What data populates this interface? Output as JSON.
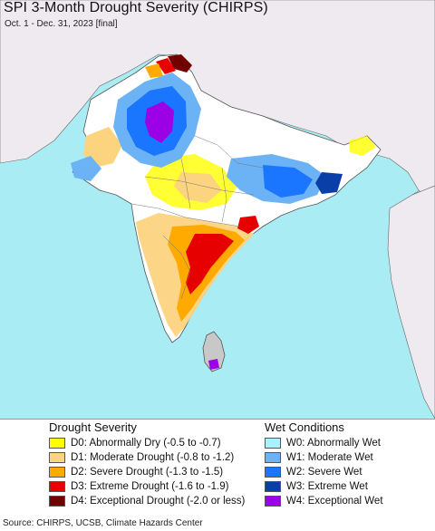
{
  "title": "SPI 3-Month Drought Severity (CHIRPS)",
  "subtitle": "Oct. 1 - Dec. 31, 2023 [final]",
  "colors": {
    "ocean": "#a9ecf4",
    "land": "#ffffff",
    "outside_land": "#eeeaf0",
    "border": "#555555"
  },
  "legend_drought": {
    "heading": "Drought Severity",
    "items": [
      {
        "label": "D0: Abnormally Dry (-0.5 to -0.7)",
        "color": "#ffff00"
      },
      {
        "label": "D1: Moderate Drought (-0.8 to -1.2)",
        "color": "#fcd37f"
      },
      {
        "label": "D2: Severe Drought (-1.3 to -1.5)",
        "color": "#ffaa00"
      },
      {
        "label": "D3: Extreme Drought (-1.6 to -1.9)",
        "color": "#e60000"
      },
      {
        "label": "D4: Exceptional Drought (-2.0 or less)",
        "color": "#730000"
      }
    ]
  },
  "legend_wet": {
    "heading": "Wet Conditions",
    "items": [
      {
        "label": "W0: Abnormally Wet",
        "color": "#aaf0ff"
      },
      {
        "label": "W1: Moderate Wet",
        "color": "#6bb3f5"
      },
      {
        "label": "W2: Severe Wet",
        "color": "#1a75ff"
      },
      {
        "label": "W3: Extreme Wet",
        "color": "#0a3ea8"
      },
      {
        "label": "W4: Exceptional Wet",
        "color": "#9b00e6"
      }
    ]
  },
  "source": "Source: CHIRPS, UCSB, Climate Hazards Center"
}
